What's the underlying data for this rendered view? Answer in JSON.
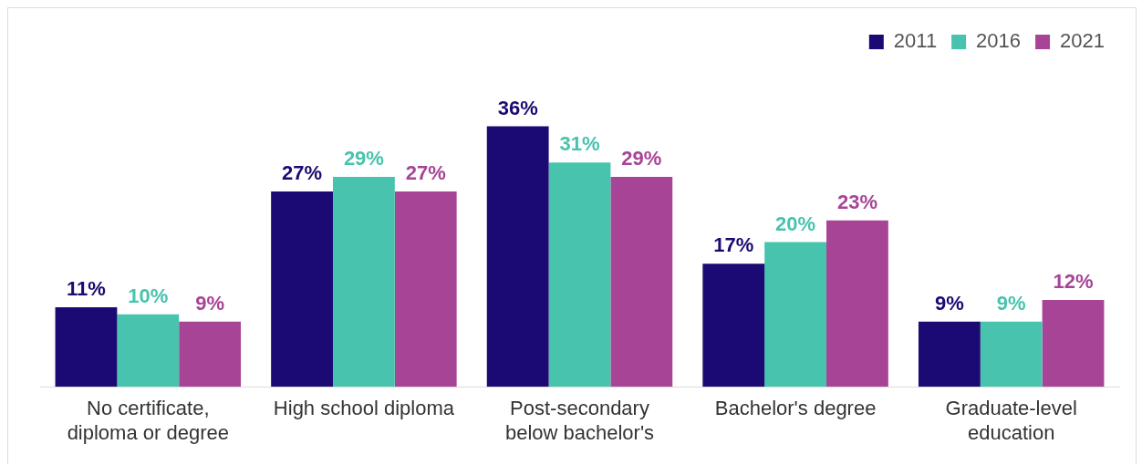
{
  "chart_data": {
    "type": "bar",
    "categories": [
      "No certificate, diploma or degree",
      "High school diploma",
      "Post-secondary below bachelor's",
      "Bachelor's degree",
      "Graduate-level education"
    ],
    "series": [
      {
        "name": "2011",
        "color": "#1b0a73",
        "values": [
          11,
          27,
          36,
          17,
          9
        ],
        "value_labels": [
          "11%",
          "27%",
          "36%",
          "17%",
          "9%"
        ]
      },
      {
        "name": "2016",
        "color": "#48c3ae",
        "values": [
          10,
          29,
          31,
          20,
          9
        ],
        "value_labels": [
          "10%",
          "29%",
          "31%",
          "20%",
          "9%"
        ]
      },
      {
        "name": "2021",
        "color": "#a84496",
        "values": [
          9,
          27,
          29,
          23,
          12
        ],
        "value_labels": [
          "9%",
          "27%",
          "29%",
          "23%",
          "12%"
        ]
      }
    ],
    "legend": "top right",
    "grid": false,
    "tick_labels": "x"
  }
}
